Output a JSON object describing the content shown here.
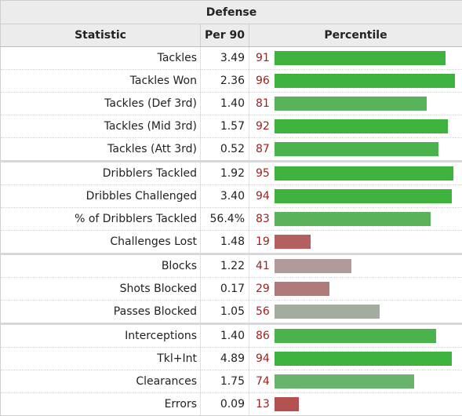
{
  "table": {
    "title": "Defense",
    "headers": {
      "statistic": "Statistic",
      "per90": "Per 90",
      "percentile": "Percentile"
    },
    "bar_scale_max": 100,
    "colors": {
      "elite_green": "#3db33d",
      "good_green": "#5ab35a",
      "mid_gray": "#a3ad9f",
      "low_rose": "#b09a9a",
      "poor_red": "#b36060",
      "percentile_text": "#9b2222"
    },
    "rows": [
      {
        "stat": "Tackles",
        "per90": "3.49",
        "percentile": 91,
        "color": "#3db33d",
        "group_end": false
      },
      {
        "stat": "Tackles Won",
        "per90": "2.36",
        "percentile": 96,
        "color": "#3db33d",
        "group_end": false
      },
      {
        "stat": "Tackles (Def 3rd)",
        "per90": "1.40",
        "percentile": 81,
        "color": "#5ab35a",
        "group_end": false
      },
      {
        "stat": "Tackles (Mid 3rd)",
        "per90": "1.57",
        "percentile": 92,
        "color": "#3db33d",
        "group_end": false
      },
      {
        "stat": "Tackles (Att 3rd)",
        "per90": "0.52",
        "percentile": 87,
        "color": "#4bb34b",
        "group_end": true
      },
      {
        "stat": "Dribblers Tackled",
        "per90": "1.92",
        "percentile": 95,
        "color": "#3db33d",
        "group_end": false
      },
      {
        "stat": "Dribbles Challenged",
        "per90": "3.40",
        "percentile": 94,
        "color": "#3db33d",
        "group_end": false
      },
      {
        "stat": "% of Dribblers Tackled",
        "per90": "56.4%",
        "percentile": 83,
        "color": "#5ab35a",
        "group_end": false
      },
      {
        "stat": "Challenges Lost",
        "per90": "1.48",
        "percentile": 19,
        "color": "#b36060",
        "group_end": true
      },
      {
        "stat": "Blocks",
        "per90": "1.22",
        "percentile": 41,
        "color": "#b09a9a",
        "group_end": false
      },
      {
        "stat": "Shots Blocked",
        "per90": "0.17",
        "percentile": 29,
        "color": "#b07a7a",
        "group_end": false
      },
      {
        "stat": "Passes Blocked",
        "per90": "1.05",
        "percentile": 56,
        "color": "#a3ad9f",
        "group_end": true
      },
      {
        "stat": "Interceptions",
        "per90": "1.40",
        "percentile": 86,
        "color": "#4bb34b",
        "group_end": false
      },
      {
        "stat": "Tkl+Int",
        "per90": "4.89",
        "percentile": 94,
        "color": "#3db33d",
        "group_end": false
      },
      {
        "stat": "Clearances",
        "per90": "1.75",
        "percentile": 74,
        "color": "#6ab36a",
        "group_end": false
      },
      {
        "stat": "Errors",
        "per90": "0.09",
        "percentile": 13,
        "color": "#b35050",
        "group_end": false
      }
    ]
  }
}
